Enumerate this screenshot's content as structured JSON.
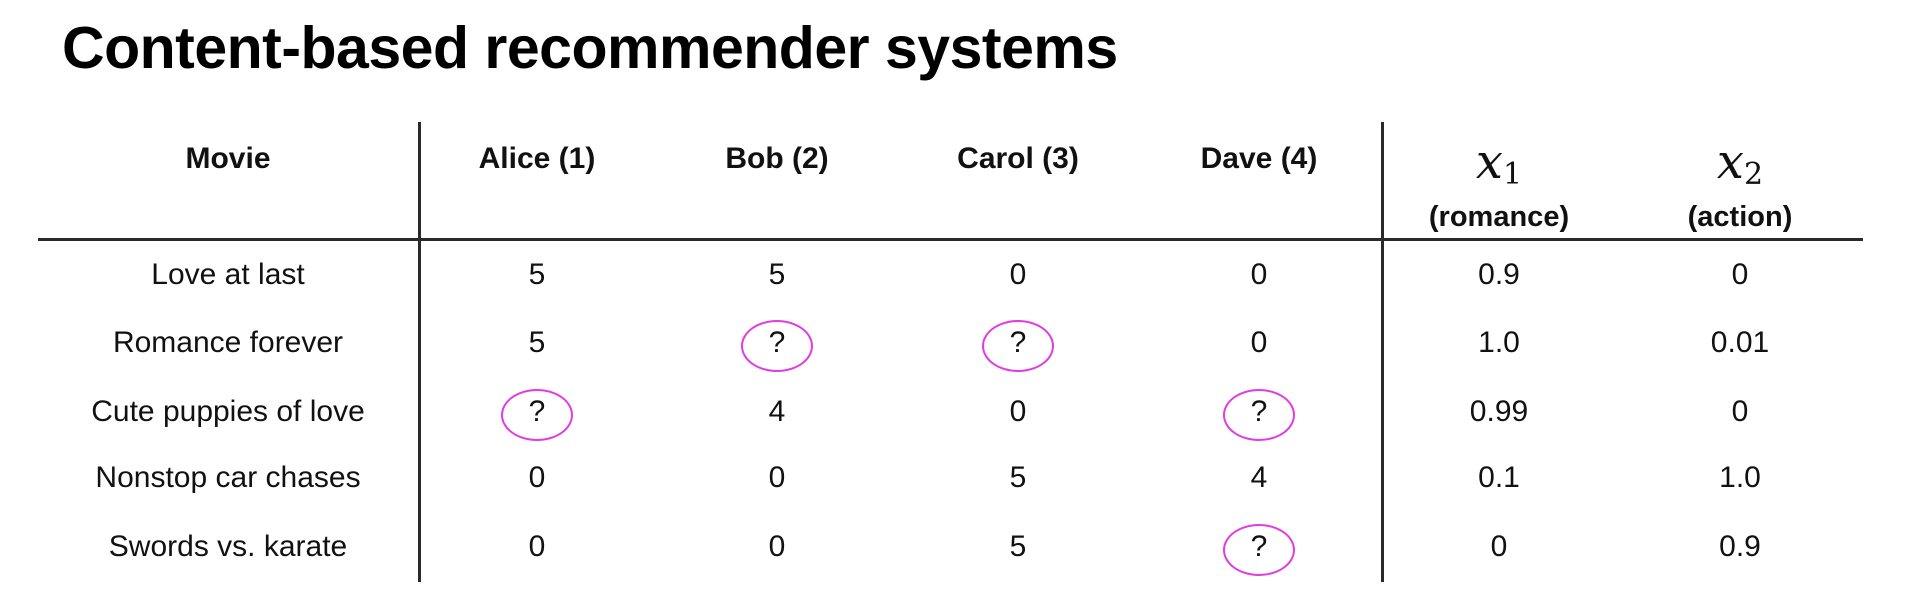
{
  "title": "Content-based recommender systems",
  "columns": {
    "movie": "Movie",
    "users": [
      "Alice (1)",
      "Bob (2)",
      "Carol (3)",
      "Dave (4)"
    ],
    "features": [
      {
        "symbol": "x",
        "subscript": "1",
        "desc": "(romance)"
      },
      {
        "symbol": "x",
        "subscript": "2",
        "desc": "(action)"
      }
    ]
  },
  "rows": [
    {
      "movie": "Love at last",
      "ratings": [
        "5",
        "5",
        "0",
        "0"
      ],
      "features": [
        "0.9",
        "0"
      ]
    },
    {
      "movie": "Romance forever",
      "ratings": [
        "5",
        "?",
        "?",
        "0"
      ],
      "features": [
        "1.0",
        "0.01"
      ]
    },
    {
      "movie": "Cute puppies of love",
      "ratings": [
        "?",
        "4",
        "0",
        "?"
      ],
      "features": [
        "0.99",
        "0"
      ]
    },
    {
      "movie": "Nonstop car chases",
      "ratings": [
        "0",
        "0",
        "5",
        "4"
      ],
      "features": [
        "0.1",
        "1.0"
      ]
    },
    {
      "movie": "Swords vs. karate",
      "ratings": [
        "0",
        "0",
        "5",
        "?"
      ],
      "features": [
        "0",
        "0.9"
      ]
    }
  ],
  "annotation_color": "#e23ce0"
}
